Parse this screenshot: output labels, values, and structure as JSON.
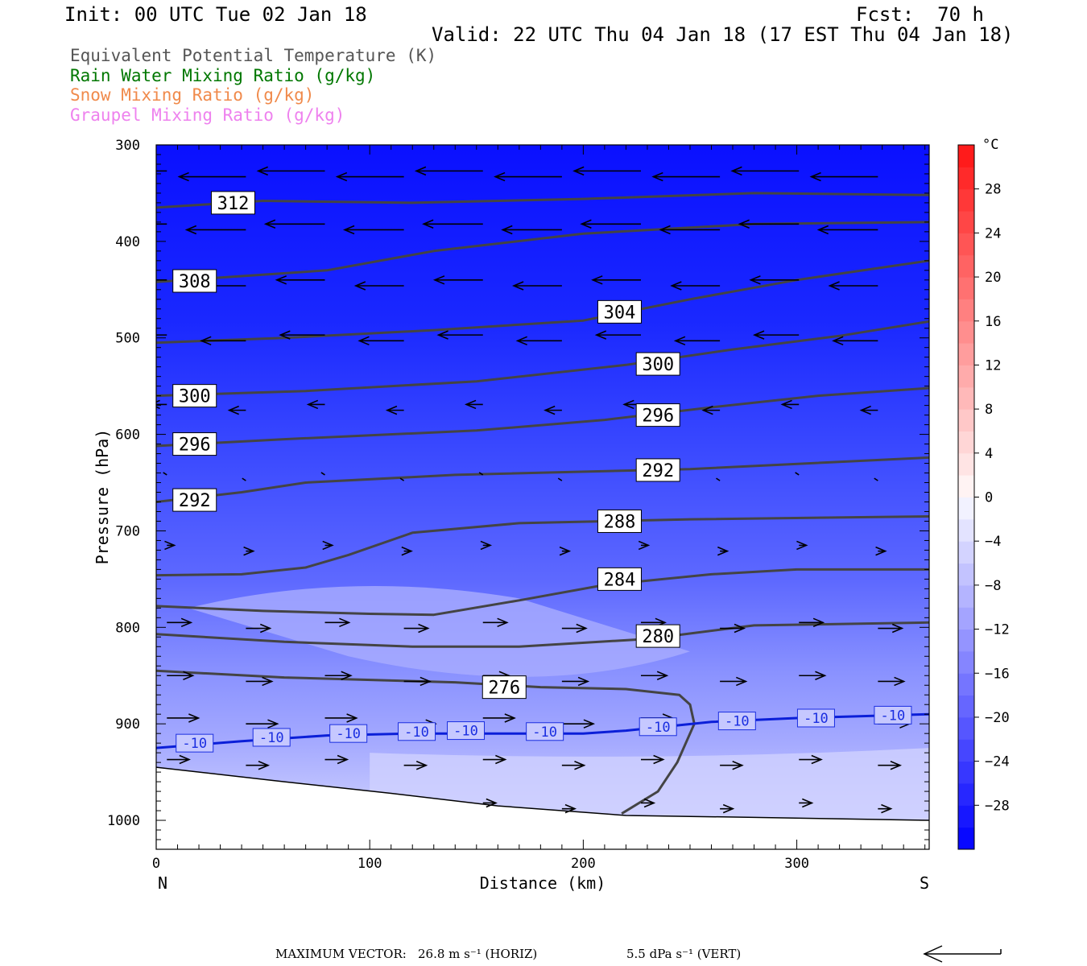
{
  "header": {
    "init": "Init: 00 UTC Tue 02 Jan 18",
    "fcst": "Fcst:  70 h",
    "valid": "Valid: 22 UTC Thu 04 Jan 18 (17 EST Thu 04 Jan 18)"
  },
  "legend": [
    {
      "label": "Equivalent Potential Temperature (K)",
      "color": "#555555"
    },
    {
      "label": "Rain Water Mixing Ratio (g/kg)",
      "color": "#007700"
    },
    {
      "label": "Snow Mixing Ratio (g/kg)",
      "color": "#f08a4b"
    },
    {
      "label": "Graupel Mixing Ratio (g/kg)",
      "color": "#ee82ee"
    }
  ],
  "chart_data": {
    "type": "contour",
    "xlabel": "Distance (km)",
    "ylabel": "Pressure (hPa)",
    "xlim": [
      0,
      362
    ],
    "ylim": [
      1030,
      300
    ],
    "x_ticks": [
      "0",
      "100",
      "200",
      "300"
    ],
    "y_ticks": [
      "300",
      "400",
      "500",
      "600",
      "700",
      "800",
      "900",
      "1000"
    ],
    "left_end_label": "N",
    "right_end_label": "S",
    "fill_field": "Temperature",
    "colorbar": {
      "unit": "°C",
      "labels": [
        "28",
        "24",
        "20",
        "16",
        "12",
        "8",
        "4",
        "0",
        "-4",
        "-8",
        "-12",
        "-16",
        "-20",
        "-24",
        "-28"
      ],
      "range": [
        -32,
        32
      ]
    },
    "theta_e_contours": [
      {
        "label": "312",
        "points": [
          [
            0,
            365
          ],
          [
            50,
            358
          ],
          [
            120,
            360
          ],
          [
            200,
            356
          ],
          [
            280,
            350
          ],
          [
            362,
            352
          ]
        ]
      },
      {
        "label": "308",
        "points": [
          [
            0,
            442
          ],
          [
            40,
            436
          ],
          [
            80,
            430
          ],
          [
            130,
            410
          ],
          [
            200,
            392
          ],
          [
            280,
            382
          ],
          [
            362,
            380
          ]
        ]
      },
      {
        "label": "304",
        "points": [
          [
            0,
            505
          ],
          [
            60,
            500
          ],
          [
            130,
            492
          ],
          [
            200,
            482
          ],
          [
            250,
            460
          ],
          [
            300,
            440
          ],
          [
            362,
            420
          ]
        ]
      },
      {
        "label": "300",
        "points": [
          [
            0,
            560
          ],
          [
            70,
            555
          ],
          [
            150,
            545
          ],
          [
            220,
            528
          ],
          [
            270,
            512
          ],
          [
            320,
            498
          ],
          [
            362,
            483
          ]
        ]
      },
      {
        "label": "296",
        "points": [
          [
            0,
            612
          ],
          [
            60,
            605
          ],
          [
            150,
            596
          ],
          [
            210,
            585
          ],
          [
            260,
            572
          ],
          [
            310,
            560
          ],
          [
            362,
            552
          ]
        ]
      },
      {
        "label": "292",
        "points": [
          [
            0,
            670
          ],
          [
            40,
            660
          ],
          [
            70,
            650
          ],
          [
            140,
            642
          ],
          [
            250,
            636
          ],
          [
            362,
            624
          ]
        ]
      },
      {
        "label": "288",
        "points": [
          [
            0,
            746
          ],
          [
            40,
            745
          ],
          [
            70,
            738
          ],
          [
            90,
            725
          ],
          [
            120,
            702
          ],
          [
            170,
            692
          ],
          [
            250,
            688
          ],
          [
            362,
            685
          ]
        ]
      },
      {
        "label": "284",
        "points": [
          [
            0,
            778
          ],
          [
            50,
            783
          ],
          [
            100,
            786
          ],
          [
            130,
            787
          ],
          [
            170,
            772
          ],
          [
            210,
            756
          ],
          [
            260,
            745
          ],
          [
            300,
            740
          ],
          [
            362,
            740
          ]
        ]
      },
      {
        "label": "280",
        "points": [
          [
            0,
            807
          ],
          [
            60,
            815
          ],
          [
            120,
            820
          ],
          [
            170,
            820
          ],
          [
            230,
            812
          ],
          [
            280,
            798
          ],
          [
            362,
            795
          ]
        ]
      },
      {
        "label": "276",
        "points": [
          [
            0,
            845
          ],
          [
            60,
            852
          ],
          [
            140,
            857
          ],
          [
            180,
            862
          ],
          [
            220,
            864
          ],
          [
            245,
            870
          ],
          [
            250,
            880
          ],
          [
            252,
            900
          ],
          [
            244,
            940
          ],
          [
            235,
            970
          ],
          [
            218,
            993
          ]
        ]
      }
    ],
    "theta_e_labels": [
      {
        "text": "312",
        "x": 36,
        "p": 360
      },
      {
        "text": "308",
        "x": 18,
        "p": 441
      },
      {
        "text": "304",
        "x": 217,
        "p": 473
      },
      {
        "text": "300",
        "x": 235,
        "p": 527
      },
      {
        "text": "300",
        "x": 18,
        "p": 560
      },
      {
        "text": "296",
        "x": 235,
        "p": 580
      },
      {
        "text": "296",
        "x": 18,
        "p": 610
      },
      {
        "text": "292",
        "x": 235,
        "p": 637
      },
      {
        "text": "292",
        "x": 18,
        "p": 668
      },
      {
        "text": "288",
        "x": 217,
        "p": 690
      },
      {
        "text": "284",
        "x": 217,
        "p": 750
      },
      {
        "text": "280",
        "x": 235,
        "p": 809
      },
      {
        "text": "276",
        "x": 163,
        "p": 862
      }
    ],
    "isotherm": {
      "value": "-10",
      "points": [
        [
          0,
          925
        ],
        [
          40,
          918
        ],
        [
          80,
          912
        ],
        [
          120,
          910
        ],
        [
          160,
          910
        ],
        [
          200,
          910
        ],
        [
          220,
          907
        ],
        [
          260,
          898
        ],
        [
          300,
          894
        ],
        [
          362,
          890
        ]
      ],
      "labels": [
        {
          "text": "-10",
          "x": 18,
          "p": 920
        },
        {
          "text": "-10",
          "x": 54,
          "p": 914
        },
        {
          "text": "-10",
          "x": 90,
          "p": 910
        },
        {
          "text": "-10",
          "x": 122,
          "p": 908
        },
        {
          "text": "-10",
          "x": 145,
          "p": 907
        },
        {
          "text": "-10",
          "x": 182,
          "p": 908
        },
        {
          "text": "-10",
          "x": 235,
          "p": 903
        },
        {
          "text": "-10",
          "x": 272,
          "p": 897
        },
        {
          "text": "-10",
          "x": 309,
          "p": 894
        },
        {
          "text": "-10",
          "x": 345,
          "p": 891
        }
      ]
    },
    "surface_pressure": [
      [
        0,
        945
      ],
      [
        60,
        960
      ],
      [
        110,
        972
      ],
      [
        160,
        985
      ],
      [
        220,
        995
      ],
      [
        280,
        997
      ],
      [
        362,
        1000
      ]
    ],
    "wind_rows": [
      {
        "p": 330,
        "u": -18.0
      },
      {
        "p": 385,
        "u": -16.0
      },
      {
        "p": 443,
        "u": -13.0
      },
      {
        "p": 500,
        "u": -12.0
      },
      {
        "p": 572,
        "u": -4.5
      },
      {
        "p": 645,
        "u": -1.0
      },
      {
        "p": 718,
        "u": 2.0
      },
      {
        "p": 798,
        "u": 6.5
      },
      {
        "p": 853,
        "u": 7.0
      },
      {
        "p": 897,
        "u": 8.5
      },
      {
        "p": 940,
        "u": 6.0
      },
      {
        "p": 985,
        "u": 3.5
      }
    ],
    "max_vector": {
      "label": "MAXIMUM VECTOR:",
      "horiz": "26.8 m s⁻¹ (HORIZ)",
      "vert": "5.5 dPa s⁻¹ (VERT)"
    }
  }
}
